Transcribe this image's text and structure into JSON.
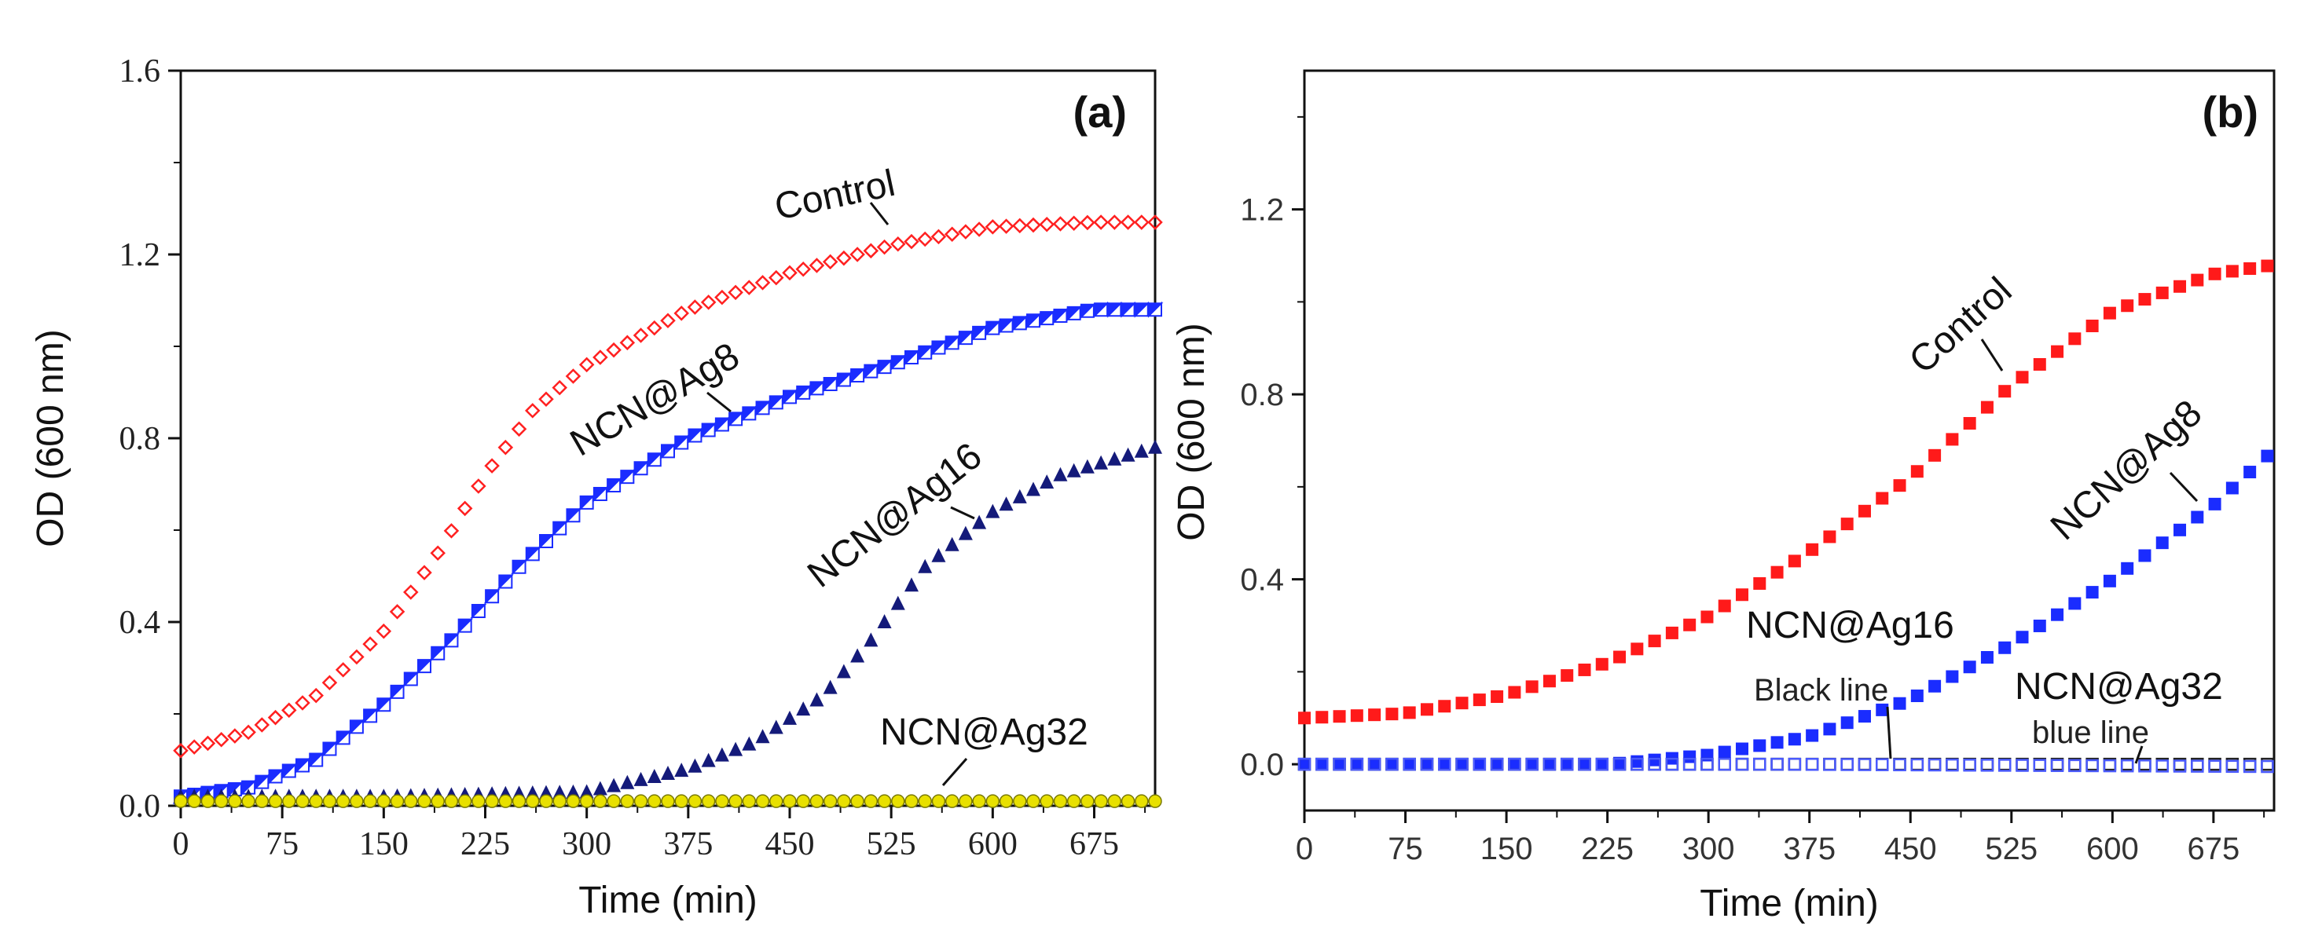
{
  "chart_data": [
    {
      "panel_label": "(a)",
      "type": "scatter",
      "xlabel": "Time (min)",
      "ylabel": "OD (600 nm)",
      "xlim": [
        0,
        720
      ],
      "ylim": [
        0,
        1.6
      ],
      "x_ticks": [
        "0",
        "75",
        "150",
        "225",
        "300",
        "375",
        "450",
        "525",
        "600",
        "675"
      ],
      "y_ticks": [
        "0.0",
        "0.4",
        "0.8",
        "1.2",
        "1.6"
      ],
      "series": [
        {
          "name": "Control",
          "color": "#ff2020",
          "marker": "diamond-open",
          "points": [
            [
              0,
              0.12
            ],
            [
              50,
              0.16
            ],
            [
              100,
              0.24
            ],
            [
              150,
              0.38
            ],
            [
              190,
              0.55
            ],
            [
              225,
              0.72
            ],
            [
              260,
              0.86
            ],
            [
              300,
              0.96
            ],
            [
              375,
              1.08
            ],
            [
              450,
              1.16
            ],
            [
              525,
              1.22
            ],
            [
              600,
              1.26
            ],
            [
              675,
              1.27
            ],
            [
              720,
              1.27
            ]
          ]
        },
        {
          "name": "NCN@Ag8",
          "color": "#1a2cff",
          "marker": "half-square",
          "points": [
            [
              0,
              0.02
            ],
            [
              50,
              0.04
            ],
            [
              100,
              0.1
            ],
            [
              150,
              0.22
            ],
            [
              200,
              0.36
            ],
            [
              250,
              0.52
            ],
            [
              300,
              0.66
            ],
            [
              375,
              0.8
            ],
            [
              450,
              0.89
            ],
            [
              525,
              0.96
            ],
            [
              600,
              1.04
            ],
            [
              675,
              1.08
            ],
            [
              720,
              1.08
            ]
          ]
        },
        {
          "name": "NCN@Ag16",
          "color": "#141a7a",
          "marker": "triangle",
          "points": [
            [
              0,
              0.02
            ],
            [
              150,
              0.02
            ],
            [
              300,
              0.03
            ],
            [
              375,
              0.08
            ],
            [
              425,
              0.14
            ],
            [
              475,
              0.24
            ],
            [
              510,
              0.36
            ],
            [
              550,
              0.52
            ],
            [
              600,
              0.64
            ],
            [
              650,
              0.72
            ],
            [
              720,
              0.78
            ]
          ]
        },
        {
          "name": "NCN@Ag32",
          "color": "#e8e000",
          "marker": "circle",
          "points": [
            [
              0,
              0.01
            ],
            [
              360,
              0.01
            ],
            [
              720,
              0.01
            ]
          ]
        }
      ],
      "annotations": [
        "Control",
        "NCN@Ag8",
        "NCN@Ag16",
        "NCN@Ag32"
      ]
    },
    {
      "panel_label": "(b)",
      "type": "scatter",
      "xlabel": "Time (min)",
      "ylabel": "OD (600 nm)",
      "xlim": [
        0,
        720
      ],
      "ylim": [
        -0.1,
        1.5
      ],
      "x_ticks": [
        "0",
        "75",
        "150",
        "225",
        "300",
        "375",
        "450",
        "525",
        "600",
        "675"
      ],
      "y_ticks": [
        "0.0",
        "0.4",
        "0.8",
        "1.2"
      ],
      "series": [
        {
          "name": "Control",
          "color": "#ff1a1a",
          "marker": "square",
          "points": [
            [
              0,
              0.1
            ],
            [
              75,
              0.11
            ],
            [
              150,
              0.15
            ],
            [
              225,
              0.22
            ],
            [
              300,
              0.32
            ],
            [
              375,
              0.46
            ],
            [
              450,
              0.62
            ],
            [
              525,
              0.82
            ],
            [
              600,
              0.98
            ],
            [
              675,
              1.06
            ],
            [
              720,
              1.08
            ]
          ]
        },
        {
          "name": "NCN@Ag8",
          "color": "#1a2cff",
          "marker": "square",
          "points": [
            [
              0,
              0.0
            ],
            [
              150,
              0.0
            ],
            [
              225,
              0.0
            ],
            [
              300,
              0.02
            ],
            [
              375,
              0.06
            ],
            [
              450,
              0.14
            ],
            [
              525,
              0.26
            ],
            [
              600,
              0.4
            ],
            [
              675,
              0.56
            ],
            [
              720,
              0.68
            ]
          ]
        },
        {
          "name": "NCN@Ag16",
          "color": "#222222",
          "marker": "square-open",
          "points": [
            [
              0,
              0.0
            ],
            [
              360,
              0.0
            ],
            [
              720,
              0.0
            ]
          ]
        },
        {
          "name": "NCN@Ag32",
          "color": "#4a5aff",
          "marker": "square-open",
          "points": [
            [
              0,
              0.0
            ],
            [
              360,
              0.0
            ],
            [
              720,
              -0.005
            ]
          ]
        }
      ],
      "annotations": [
        "Control",
        "NCN@Ag8",
        "NCN@Ag16",
        "Black line",
        "NCN@Ag32",
        "blue line"
      ]
    }
  ]
}
